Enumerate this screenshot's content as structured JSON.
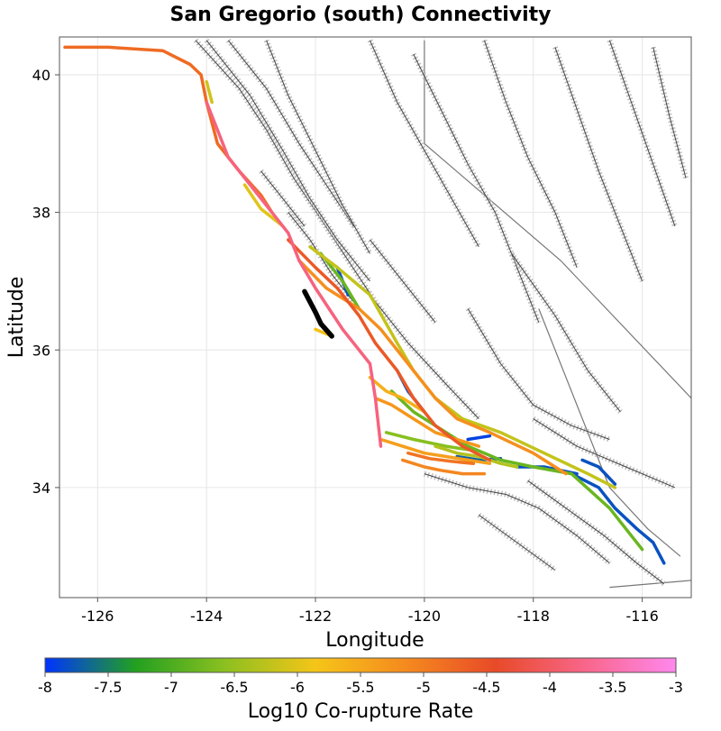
{
  "chart_data": {
    "type": "map",
    "title": "San Gregorio (south) Connectivity",
    "xlabel": "Longitude",
    "ylabel": "Latitude",
    "xlim": [
      -126.7,
      -115.1
    ],
    "ylim": [
      32.4,
      40.55
    ],
    "x_ticks": [
      -126,
      -124,
      -122,
      -120,
      -118,
      -116
    ],
    "y_ticks": [
      34,
      36,
      38,
      40
    ],
    "colorbar": {
      "label": "Log10 Co-rupture Rate",
      "range": [
        -8,
        -3
      ],
      "ticks": [
        -8,
        -7.5,
        -7,
        -6.5,
        -6,
        -5.5,
        -5,
        -4.5,
        -4,
        -3.5,
        -3
      ],
      "tick_labels": [
        "-8",
        "-7.5",
        "-7",
        "-6.5",
        "-6",
        "-5.5",
        "-5",
        "-4.5",
        "-4",
        "-3.5",
        "-3"
      ],
      "stops": [
        "#0033ff",
        "#22a020",
        "#8cc020",
        "#f5c518",
        "#f58a1e",
        "#e84a28",
        "#f8668a",
        "#ff88ee"
      ]
    },
    "source_section": {
      "name": "San Gregorio (south)",
      "color": "#000000",
      "lonlat": [
        [
          -122.2,
          36.85
        ],
        [
          -122.0,
          36.55
        ],
        [
          -121.9,
          36.38
        ],
        [
          -121.7,
          36.2
        ]
      ]
    },
    "ruptures": [
      {
        "rate": -4.8,
        "lonlat": [
          [
            -126.6,
            40.4
          ],
          [
            -125.8,
            40.4
          ],
          [
            -124.8,
            40.35
          ],
          [
            -124.3,
            40.15
          ],
          [
            -124.1,
            40.0
          ],
          [
            -124.0,
            39.6
          ],
          [
            -123.8,
            39.0
          ],
          [
            -123.4,
            38.6
          ],
          [
            -123.0,
            38.25
          ],
          [
            -122.8,
            38.0
          ]
        ]
      },
      {
        "rate": -3.8,
        "lonlat": [
          [
            -124.0,
            39.6
          ],
          [
            -123.6,
            38.8
          ],
          [
            -123.0,
            38.2
          ],
          [
            -122.5,
            37.7
          ],
          [
            -122.3,
            37.3
          ],
          [
            -122.0,
            36.9
          ],
          [
            -121.5,
            36.3
          ],
          [
            -121.0,
            35.8
          ],
          [
            -120.9,
            35.3
          ],
          [
            -120.8,
            34.6
          ]
        ]
      },
      {
        "rate": -6.0,
        "lonlat": [
          [
            -123.3,
            38.4
          ],
          [
            -123.0,
            38.05
          ],
          [
            -122.6,
            37.8
          ]
        ]
      },
      {
        "rate": -4.6,
        "lonlat": [
          [
            -122.5,
            37.6
          ],
          [
            -122.0,
            37.2
          ],
          [
            -121.6,
            36.9
          ],
          [
            -121.2,
            36.5
          ],
          [
            -120.9,
            36.1
          ],
          [
            -120.5,
            35.7
          ],
          [
            -120.2,
            35.3
          ],
          [
            -119.8,
            34.9
          ],
          [
            -119.3,
            34.6
          ],
          [
            -118.8,
            34.4
          ]
        ]
      },
      {
        "rate": -5.2,
        "lonlat": [
          [
            -122.3,
            37.3
          ],
          [
            -121.8,
            36.9
          ],
          [
            -121.2,
            36.6
          ],
          [
            -120.8,
            36.3
          ],
          [
            -120.4,
            35.9
          ],
          [
            -120.1,
            35.6
          ],
          [
            -119.8,
            35.3
          ],
          [
            -119.4,
            35.0
          ],
          [
            -118.8,
            34.8
          ],
          [
            -118.0,
            34.5
          ],
          [
            -117.4,
            34.2
          ]
        ]
      },
      {
        "rate": -6.2,
        "lonlat": [
          [
            -122.1,
            37.5
          ],
          [
            -121.6,
            37.2
          ],
          [
            -121.0,
            36.8
          ],
          [
            -120.5,
            36.1
          ],
          [
            -120.2,
            35.7
          ],
          [
            -119.8,
            35.3
          ],
          [
            -119.3,
            35.0
          ],
          [
            -118.6,
            34.8
          ],
          [
            -117.8,
            34.5
          ],
          [
            -117.0,
            34.2
          ],
          [
            -116.5,
            34.0
          ]
        ]
      },
      {
        "rate": -6.8,
        "lonlat": [
          [
            -121.9,
            37.4
          ],
          [
            -121.5,
            37.0
          ],
          [
            -121.2,
            36.6
          ]
        ]
      },
      {
        "rate": -7.8,
        "lonlat": [
          [
            -121.6,
            37.2
          ],
          [
            -121.4,
            36.8
          ]
        ]
      },
      {
        "rate": -5.8,
        "lonlat": [
          [
            -122.0,
            36.3
          ],
          [
            -121.7,
            36.2
          ]
        ]
      },
      {
        "rate": -7.8,
        "lonlat": [
          [
            -120.5,
            35.7
          ],
          [
            -120.3,
            35.4
          ],
          [
            -120.0,
            35.1
          ]
        ]
      },
      {
        "rate": -6.8,
        "lonlat": [
          [
            -120.6,
            35.4
          ],
          [
            -120.2,
            35.1
          ],
          [
            -119.8,
            34.9
          ],
          [
            -119.2,
            34.6
          ],
          [
            -118.6,
            34.4
          ],
          [
            -118.0,
            34.3
          ],
          [
            -117.3,
            34.2
          ],
          [
            -116.6,
            33.7
          ],
          [
            -116.2,
            33.3
          ],
          [
            -116.0,
            33.1
          ]
        ]
      },
      {
        "rate": -7.8,
        "lonlat": [
          [
            -117.3,
            34.2
          ],
          [
            -116.8,
            34.0
          ],
          [
            -116.5,
            33.7
          ],
          [
            -116.1,
            33.4
          ],
          [
            -115.8,
            33.2
          ],
          [
            -115.6,
            32.9
          ]
        ]
      },
      {
        "rate": -7.8,
        "lonlat": [
          [
            -118.3,
            34.3
          ],
          [
            -117.8,
            34.3
          ],
          [
            -117.2,
            34.2
          ]
        ]
      },
      {
        "rate": -7.8,
        "lonlat": [
          [
            -117.1,
            34.4
          ],
          [
            -116.8,
            34.3
          ],
          [
            -116.5,
            34.05
          ]
        ]
      },
      {
        "rate": -5.3,
        "lonlat": [
          [
            -120.9,
            35.3
          ],
          [
            -120.6,
            35.2
          ],
          [
            -120.2,
            35.0
          ],
          [
            -119.8,
            34.8
          ],
          [
            -119.4,
            34.7
          ],
          [
            -119.0,
            34.6
          ]
        ]
      },
      {
        "rate": -5.4,
        "lonlat": [
          [
            -120.8,
            34.7
          ],
          [
            -120.4,
            34.6
          ],
          [
            -120.0,
            34.5
          ],
          [
            -119.6,
            34.45
          ],
          [
            -119.2,
            34.4
          ],
          [
            -118.8,
            34.35
          ]
        ]
      },
      {
        "rate": -5.1,
        "lonlat": [
          [
            -120.4,
            34.4
          ],
          [
            -120.0,
            34.3
          ],
          [
            -119.7,
            34.25
          ],
          [
            -119.3,
            34.2
          ],
          [
            -118.9,
            34.2
          ]
        ]
      },
      {
        "rate": -4.9,
        "lonlat": [
          [
            -120.3,
            34.5
          ],
          [
            -119.9,
            34.42
          ],
          [
            -119.5,
            34.38
          ],
          [
            -119.1,
            34.35
          ]
        ]
      },
      {
        "rate": -6.6,
        "lonlat": [
          [
            -120.7,
            34.8
          ],
          [
            -120.2,
            34.7
          ],
          [
            -119.6,
            34.6
          ],
          [
            -119.2,
            34.55
          ]
        ]
      },
      {
        "rate": -6.3,
        "lonlat": [
          [
            -119.8,
            34.6
          ],
          [
            -119.4,
            34.5
          ],
          [
            -119.0,
            34.45
          ],
          [
            -118.6,
            34.35
          ],
          [
            -118.3,
            34.3
          ]
        ]
      },
      {
        "rate": -7.9,
        "lonlat": [
          [
            -119.2,
            34.7
          ],
          [
            -118.8,
            34.75
          ]
        ]
      },
      {
        "rate": -7.7,
        "lonlat": [
          [
            -119.4,
            34.45
          ],
          [
            -119.0,
            34.4
          ],
          [
            -118.6,
            34.42
          ]
        ]
      },
      {
        "rate": -5.6,
        "lonlat": [
          [
            -121.0,
            35.6
          ],
          [
            -120.7,
            35.4
          ],
          [
            -120.4,
            35.3
          ],
          [
            -120.0,
            35.1
          ]
        ]
      },
      {
        "rate": -6.1,
        "lonlat": [
          [
            -124.0,
            39.9
          ],
          [
            -123.9,
            39.6
          ]
        ]
      }
    ],
    "background_faults": [
      [
        [
          -124.2,
          40.5
        ],
        [
          -123.4,
          39.8
        ],
        [
          -122.9,
          39.2
        ],
        [
          -122.4,
          38.5
        ],
        [
          -121.9,
          37.9
        ],
        [
          -121.4,
          37.3
        ],
        [
          -120.9,
          36.7
        ],
        [
          -120.3,
          36.1
        ],
        [
          -119.6,
          35.5
        ],
        [
          -119.0,
          35.0
        ]
      ],
      [
        [
          -124.0,
          40.5
        ],
        [
          -123.2,
          39.7
        ],
        [
          -122.6,
          38.9
        ],
        [
          -122.1,
          38.2
        ],
        [
          -121.6,
          37.6
        ],
        [
          -121.0,
          37.0
        ]
      ],
      [
        [
          -123.6,
          40.5
        ],
        [
          -122.9,
          39.8
        ],
        [
          -122.3,
          39.0
        ],
        [
          -121.8,
          38.4
        ],
        [
          -121.3,
          37.8
        ]
      ],
      [
        [
          -122.9,
          40.5
        ],
        [
          -122.5,
          39.7
        ],
        [
          -122.0,
          38.9
        ],
        [
          -121.5,
          38.1
        ],
        [
          -121.0,
          37.4
        ]
      ],
      [
        [
          -121.0,
          40.5
        ],
        [
          -120.5,
          39.6
        ],
        [
          -120.0,
          38.9
        ],
        [
          -119.5,
          38.2
        ],
        [
          -119.0,
          37.5
        ]
      ],
      [
        [
          -120.2,
          40.3
        ],
        [
          -119.7,
          39.5
        ],
        [
          -119.2,
          38.7
        ],
        [
          -118.7,
          38.0
        ],
        [
          -118.3,
          37.2
        ],
        [
          -117.9,
          36.4
        ]
      ],
      [
        [
          -118.9,
          40.5
        ],
        [
          -118.5,
          39.6
        ],
        [
          -118.1,
          38.8
        ],
        [
          -117.6,
          38.0
        ],
        [
          -117.2,
          37.2
        ]
      ],
      [
        [
          -117.6,
          40.4
        ],
        [
          -117.2,
          39.5
        ],
        [
          -116.8,
          38.6
        ],
        [
          -116.4,
          37.8
        ],
        [
          -116.0,
          37.0
        ]
      ],
      [
        [
          -116.6,
          40.5
        ],
        [
          -116.2,
          39.6
        ],
        [
          -115.8,
          38.7
        ],
        [
          -115.4,
          37.8
        ]
      ],
      [
        [
          -115.8,
          40.4
        ],
        [
          -115.5,
          39.4
        ],
        [
          -115.2,
          38.5
        ]
      ],
      [
        [
          -119.2,
          36.6
        ],
        [
          -118.6,
          35.8
        ],
        [
          -118.0,
          35.2
        ],
        [
          -117.3,
          34.9
        ],
        [
          -116.6,
          34.7
        ]
      ],
      [
        [
          -118.4,
          37.4
        ],
        [
          -117.6,
          36.5
        ],
        [
          -117.0,
          35.7
        ],
        [
          -116.4,
          35.1
        ]
      ],
      [
        [
          -120.0,
          34.2
        ],
        [
          -119.2,
          34.0
        ],
        [
          -118.5,
          33.9
        ],
        [
          -117.9,
          33.7
        ],
        [
          -117.2,
          33.3
        ],
        [
          -116.6,
          32.9
        ]
      ],
      [
        [
          -119.0,
          33.6
        ],
        [
          -118.3,
          33.2
        ],
        [
          -117.6,
          32.8
        ]
      ],
      [
        [
          -118.1,
          34.1
        ],
        [
          -117.4,
          33.7
        ],
        [
          -116.7,
          33.3
        ],
        [
          -116.1,
          32.9
        ],
        [
          -115.6,
          32.6
        ]
      ],
      [
        [
          -118.0,
          35.0
        ],
        [
          -117.2,
          34.6
        ],
        [
          -116.3,
          34.3
        ],
        [
          -115.4,
          34.0
        ]
      ],
      [
        [
          -121.0,
          37.6
        ],
        [
          -120.4,
          37.0
        ],
        [
          -119.8,
          36.4
        ]
      ],
      [
        [
          -122.5,
          38.0
        ],
        [
          -122.1,
          37.6
        ],
        [
          -121.7,
          37.1
        ],
        [
          -121.3,
          36.7
        ]
      ],
      [
        [
          -123.0,
          38.6
        ],
        [
          -122.6,
          38.2
        ],
        [
          -122.2,
          37.8
        ]
      ]
    ],
    "boundary_lines": [
      [
        [
          -120.0,
          40.5
        ],
        [
          -120.0,
          39.0
        ],
        [
          -117.5,
          37.3
        ],
        [
          -115.1,
          35.3
        ]
      ],
      [
        [
          -117.9,
          36.6
        ],
        [
          -116.6,
          34.0
        ],
        [
          -115.9,
          33.4
        ],
        [
          -115.3,
          33.0
        ]
      ],
      [
        [
          -116.6,
          32.55
        ],
        [
          -115.1,
          32.65
        ]
      ]
    ]
  }
}
